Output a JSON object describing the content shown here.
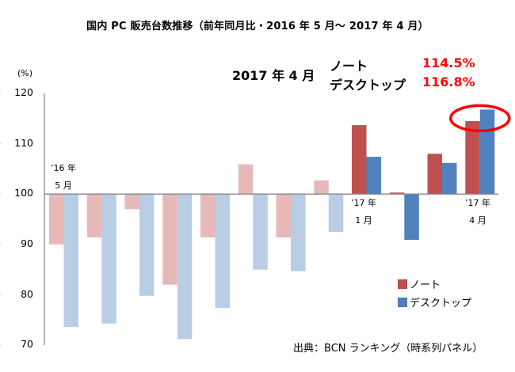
{
  "chart_data": {
    "type": "bar",
    "title": "国内 PC 販売台数推移（前年同月比・2016 年 5 月～ 2017 年 4 月）",
    "ylabel": "(%)",
    "xlabel": "",
    "ylim": [
      70,
      120
    ],
    "baseline": 100,
    "yticks": [
      "120",
      "110",
      "100",
      "90",
      "80",
      "70"
    ],
    "ytick_values": [
      120,
      110,
      100,
      90,
      80,
      70
    ],
    "categories": [
      "2016-05",
      "2016-06",
      "2016-07",
      "2016-08",
      "2016-09",
      "2016-10",
      "2016-11",
      "2016-12",
      "2017-01",
      "2017-02",
      "2017-03",
      "2017-04"
    ],
    "highlighted_from_index": 8,
    "series": [
      {
        "name": "ノート",
        "color": "#C0504D",
        "faded_color": "#E6B9B8",
        "values": [
          90.0,
          91.4,
          97.0,
          82.0,
          91.4,
          105.9,
          91.4,
          102.7,
          113.7,
          100.3,
          108.0,
          114.5
        ]
      },
      {
        "name": "デスクトップ",
        "color": "#4F81BD",
        "faded_color": "#B9CDE5",
        "values": [
          73.6,
          74.3,
          79.8,
          71.2,
          77.4,
          85.0,
          84.7,
          92.5,
          107.4,
          90.9,
          106.2,
          116.8
        ]
      }
    ],
    "category_labels": [
      {
        "index": 0,
        "line1": "’16 年",
        "line2": "5 月",
        "position": "above"
      },
      {
        "index": 8,
        "line1": "’17 年",
        "line2": "1 月",
        "position": "below"
      },
      {
        "index": 11,
        "line1": "’17 年",
        "line2": "4 月",
        "position": "below"
      }
    ],
    "legend": {
      "placement": "bottom-right",
      "entries": [
        "ノート",
        "デスクトップ"
      ]
    },
    "annotation": {
      "date": "2017 年 4 月",
      "rows": [
        {
          "label": "ノート",
          "value": "114.5%"
        },
        {
          "label": "デスクトップ",
          "value": "116.8%"
        }
      ],
      "highlight_color": "#FF0000"
    },
    "grid": false
  },
  "source": "出典：BCN ランキング（時系列パネル）"
}
